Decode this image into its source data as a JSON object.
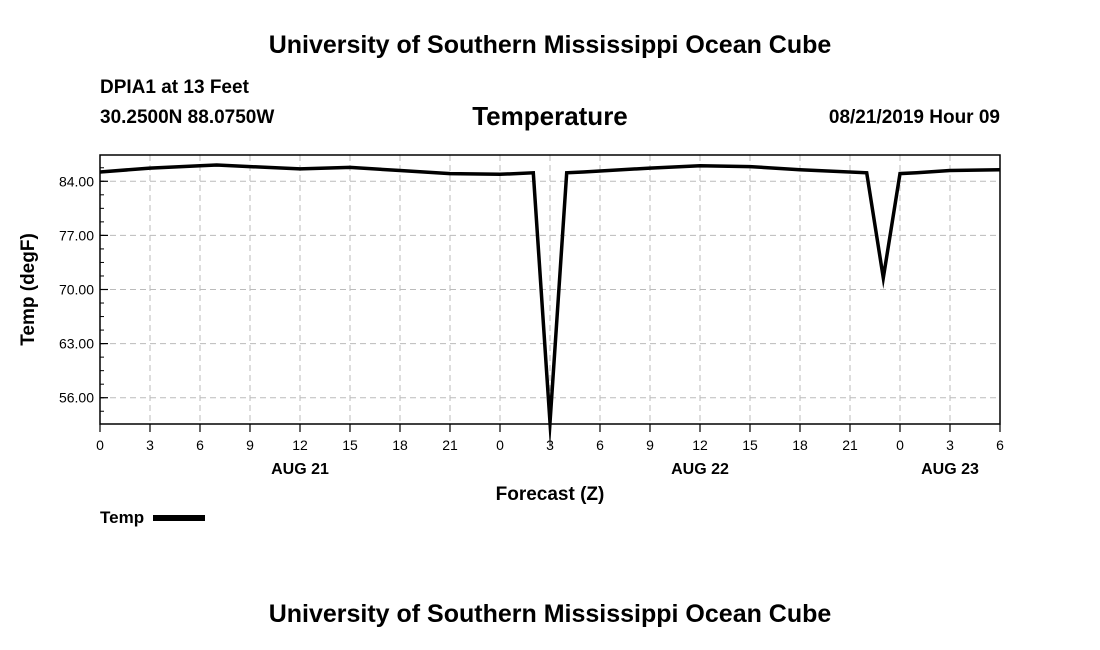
{
  "header": {
    "title": "University of Southern Mississippi Ocean Cube",
    "station": "DPIA1 at 13 Feet",
    "coords": "30.2500N 88.0750W",
    "timestamp": "08/21/2019 Hour 09"
  },
  "footer": {
    "title": "University of Southern Mississippi Ocean Cube"
  },
  "chart_data": {
    "type": "line",
    "title": "Temperature",
    "xlabel": "Forecast (Z)",
    "ylabel": "Temp (degF)",
    "grid": true,
    "line_color": "#000000",
    "grid_color": "#bbbbbb",
    "x_unit": "hours",
    "xlim": [
      0,
      54
    ],
    "ylim": [
      52.6,
      87.4
    ],
    "y_ticks": [
      56,
      63,
      70,
      77,
      84
    ],
    "y_tick_labels": [
      "56.00",
      "63.00",
      "70.00",
      "77.00",
      "84.00"
    ],
    "x_ticks": [
      0,
      3,
      6,
      9,
      12,
      15,
      18,
      21,
      24,
      27,
      30,
      33,
      36,
      39,
      42,
      45,
      48,
      51,
      54
    ],
    "x_tick_labels": [
      "0",
      "3",
      "6",
      "9",
      "12",
      "15",
      "18",
      "21",
      "0",
      "3",
      "6",
      "9",
      "12",
      "15",
      "18",
      "21",
      "0",
      "3",
      "6"
    ],
    "date_labels": [
      {
        "x": 12,
        "label": "AUG 21"
      },
      {
        "x": 36,
        "label": "AUG 22"
      },
      {
        "x": 51,
        "label": "AUG 23"
      }
    ],
    "legend": [
      {
        "label": "Temp"
      }
    ],
    "legend_position": "bottom-left",
    "series": [
      {
        "name": "Temp",
        "x": [
          0,
          3,
          6,
          7,
          9,
          12,
          15,
          18,
          21,
          24,
          26,
          27,
          28,
          29,
          33,
          36,
          39,
          42,
          46,
          47,
          48,
          49,
          51,
          54
        ],
        "y": [
          85.2,
          85.7,
          86.0,
          86.1,
          85.9,
          85.6,
          85.8,
          85.4,
          85.0,
          84.9,
          85.1,
          52.8,
          85.1,
          85.2,
          85.7,
          86.0,
          85.9,
          85.5,
          85.1,
          71.5,
          85.0,
          85.1,
          85.4,
          85.5
        ]
      }
    ]
  }
}
